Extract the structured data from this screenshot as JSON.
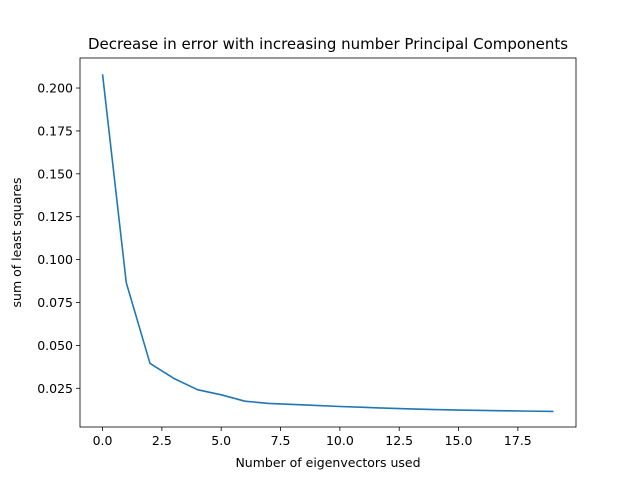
{
  "chart_data": {
    "type": "line",
    "title": "Decrease in error with increasing number Principal Components",
    "xlabel": "Number of eigenvectors used",
    "ylabel": "sum of least squares",
    "xlim": [
      -0.95,
      19.95
    ],
    "ylim": [
      0.00245,
      0.2175
    ],
    "x_ticks": [
      0.0,
      2.5,
      5.0,
      7.5,
      10.0,
      12.5,
      15.0,
      17.5
    ],
    "x_tick_labels": [
      "0.0",
      "2.5",
      "5.0",
      "7.5",
      "10.0",
      "12.5",
      "15.0",
      "17.5"
    ],
    "y_ticks": [
      0.025,
      0.05,
      0.075,
      0.1,
      0.125,
      0.15,
      0.175,
      0.2
    ],
    "y_tick_labels": [
      "0.025",
      "0.050",
      "0.075",
      "0.100",
      "0.125",
      "0.150",
      "0.175",
      "0.200"
    ],
    "grid": false,
    "series": [
      {
        "color": "#1f77b4",
        "x": [
          0,
          1,
          2,
          3,
          4,
          5,
          6,
          7,
          8,
          9,
          10,
          11,
          12,
          13,
          14,
          15,
          16,
          17,
          18,
          19
        ],
        "y": [
          0.208,
          0.0865,
          0.0395,
          0.0308,
          0.0242,
          0.0212,
          0.0175,
          0.0162,
          0.0156,
          0.015,
          0.0144,
          0.0139,
          0.0134,
          0.013,
          0.0126,
          0.0123,
          0.0121,
          0.0119,
          0.0117,
          0.0115
        ]
      }
    ]
  }
}
